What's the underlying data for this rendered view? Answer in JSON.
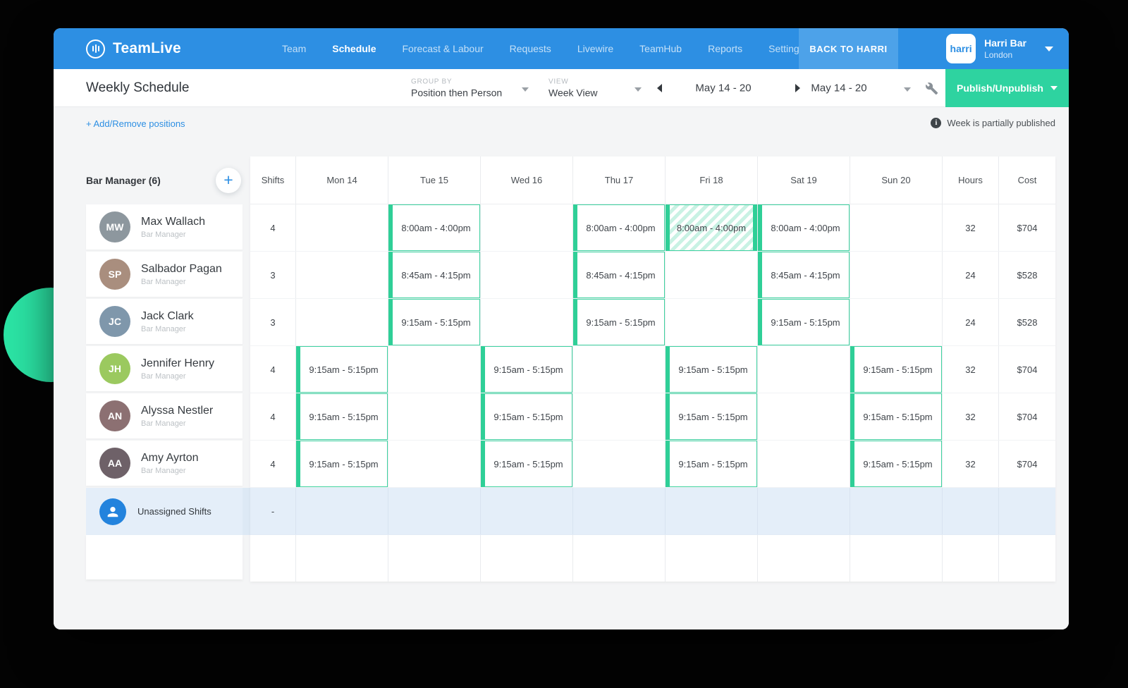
{
  "app": {
    "name": "TeamLive"
  },
  "nav": {
    "items": [
      {
        "label": "Team",
        "active": false
      },
      {
        "label": "Schedule",
        "active": true
      },
      {
        "label": "Forecast & Labour",
        "active": false
      },
      {
        "label": "Requests",
        "active": false
      },
      {
        "label": "Livewire",
        "active": false
      },
      {
        "label": "TeamHub",
        "active": false
      },
      {
        "label": "Reports",
        "active": false
      },
      {
        "label": "Settings",
        "active": false
      }
    ],
    "back_button": "BACK TO HARRI",
    "account": {
      "logo_text": "harri",
      "name": "Harri Bar",
      "location": "London"
    }
  },
  "toolbar": {
    "title": "Weekly Schedule",
    "group_by": {
      "label": "GROUP BY",
      "value": "Position then Person"
    },
    "view": {
      "label": "VIEW",
      "value": "Week View"
    },
    "date_range": "May 14 - 20",
    "date_range_picker": "May 14 - 20",
    "publish_label": "Publish/Unpublish"
  },
  "content": {
    "add_remove_link": "+ Add/Remove positions",
    "status_note": "Week is partially published"
  },
  "sidebar": {
    "group_title": "Bar Manager (6)",
    "employees": [
      {
        "name": "Max Wallach",
        "role": "Bar Manager",
        "avatar_color": "#8d979e"
      },
      {
        "name": "Salbador Pagan",
        "role": "Bar Manager",
        "avatar_color": "#a98e7e"
      },
      {
        "name": "Jack Clark",
        "role": "Bar Manager",
        "avatar_color": "#7f97ab"
      },
      {
        "name": "Jennifer Henry",
        "role": "Bar Manager",
        "avatar_color": "#9bc95f"
      },
      {
        "name": "Alyssa Nestler",
        "role": "Bar Manager",
        "avatar_color": "#8c7072"
      },
      {
        "name": "Amy Ayrton",
        "role": "Bar Manager",
        "avatar_color": "#6e6168"
      }
    ],
    "unassigned_label": "Unassigned Shifts"
  },
  "grid": {
    "columns": [
      "Shifts",
      "Mon 14",
      "Tue 15",
      "Wed 16",
      "Thu 17",
      "Fri 18",
      "Sat 19",
      "Sun 20",
      "Hours",
      "Cost"
    ],
    "rows": [
      {
        "shifts": "4",
        "days": [
          null,
          {
            "time": "8:00am - 4:00pm"
          },
          null,
          {
            "time": "8:00am - 4:00pm"
          },
          {
            "time": "8:00am - 4:00pm",
            "hatched": true
          },
          {
            "time": "8:00am - 4:00pm"
          },
          null
        ],
        "hours": "32",
        "cost": "$704"
      },
      {
        "shifts": "3",
        "days": [
          null,
          {
            "time": "8:45am - 4:15pm"
          },
          null,
          {
            "time": "8:45am - 4:15pm"
          },
          null,
          {
            "time": "8:45am - 4:15pm"
          },
          null
        ],
        "hours": "24",
        "cost": "$528"
      },
      {
        "shifts": "3",
        "days": [
          null,
          {
            "time": "9:15am - 5:15pm"
          },
          null,
          {
            "time": "9:15am - 5:15pm"
          },
          null,
          {
            "time": "9:15am - 5:15pm"
          },
          null
        ],
        "hours": "24",
        "cost": "$528"
      },
      {
        "shifts": "4",
        "days": [
          {
            "time": "9:15am - 5:15pm"
          },
          null,
          {
            "time": "9:15am - 5:15pm"
          },
          null,
          {
            "time": "9:15am - 5:15pm"
          },
          null,
          {
            "time": "9:15am - 5:15pm"
          }
        ],
        "hours": "32",
        "cost": "$704"
      },
      {
        "shifts": "4",
        "days": [
          {
            "time": "9:15am - 5:15pm"
          },
          null,
          {
            "time": "9:15am - 5:15pm"
          },
          null,
          {
            "time": "9:15am - 5:15pm"
          },
          null,
          {
            "time": "9:15am - 5:15pm"
          }
        ],
        "hours": "32",
        "cost": "$704"
      },
      {
        "shifts": "4",
        "days": [
          {
            "time": "9:15am - 5:15pm"
          },
          null,
          {
            "time": "9:15am - 5:15pm"
          },
          null,
          {
            "time": "9:15am - 5:15pm"
          },
          null,
          {
            "time": "9:15am - 5:15pm"
          }
        ],
        "hours": "32",
        "cost": "$704"
      }
    ],
    "unassigned_shifts": "-"
  },
  "colors": {
    "nav_blue": "#2d8fe3",
    "nav_blue_light": "#4da2e9",
    "publish_green": "#2ed3a0",
    "shift_border_green": "#3ed2a0",
    "shift_bar_green": "#2fcf97",
    "hatch_green": "#c9f2e4",
    "unassigned_row_bg": "#e4eef9",
    "unassigned_icon_blue": "#2383dd",
    "link_blue": "#2d8fe3",
    "page_bg": "#f4f5f6",
    "decor_circle_green": "#2be3a4"
  }
}
